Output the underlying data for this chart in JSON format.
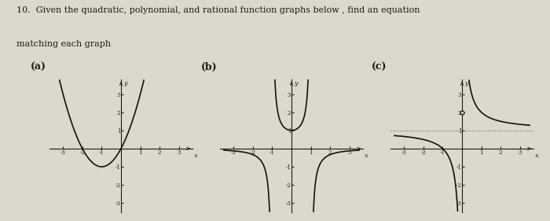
{
  "title_line1": "10.  Given the quadratic, polynomial, and rational function graphs below , find an equation",
  "title_line2": "matching each graph",
  "label_a": "(a)",
  "label_b": "(b)",
  "label_c": "(c)",
  "bg_color": "#ddd8cc",
  "axis_color": "#1a1a1a",
  "curve_color": "#111111",
  "dotted_color": "#666666",
  "fig_width": 7.0,
  "fig_height": 2.81,
  "dpi": 100
}
